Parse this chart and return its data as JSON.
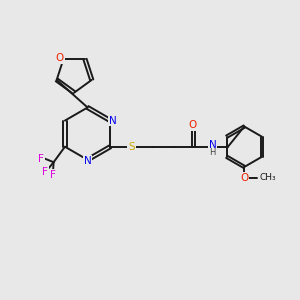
{
  "background_color": "#e8e8e8",
  "bond_color": "#1a1a1a",
  "bond_width": 1.4,
  "atom_colors": {
    "N": "#0000ee",
    "O": "#ee2200",
    "S": "#ccaa00",
    "F": "#dd00dd",
    "C": "#1a1a1a",
    "H": "#444444"
  },
  "font_size": 7.5,
  "fig_width": 3.0,
  "fig_height": 3.0
}
